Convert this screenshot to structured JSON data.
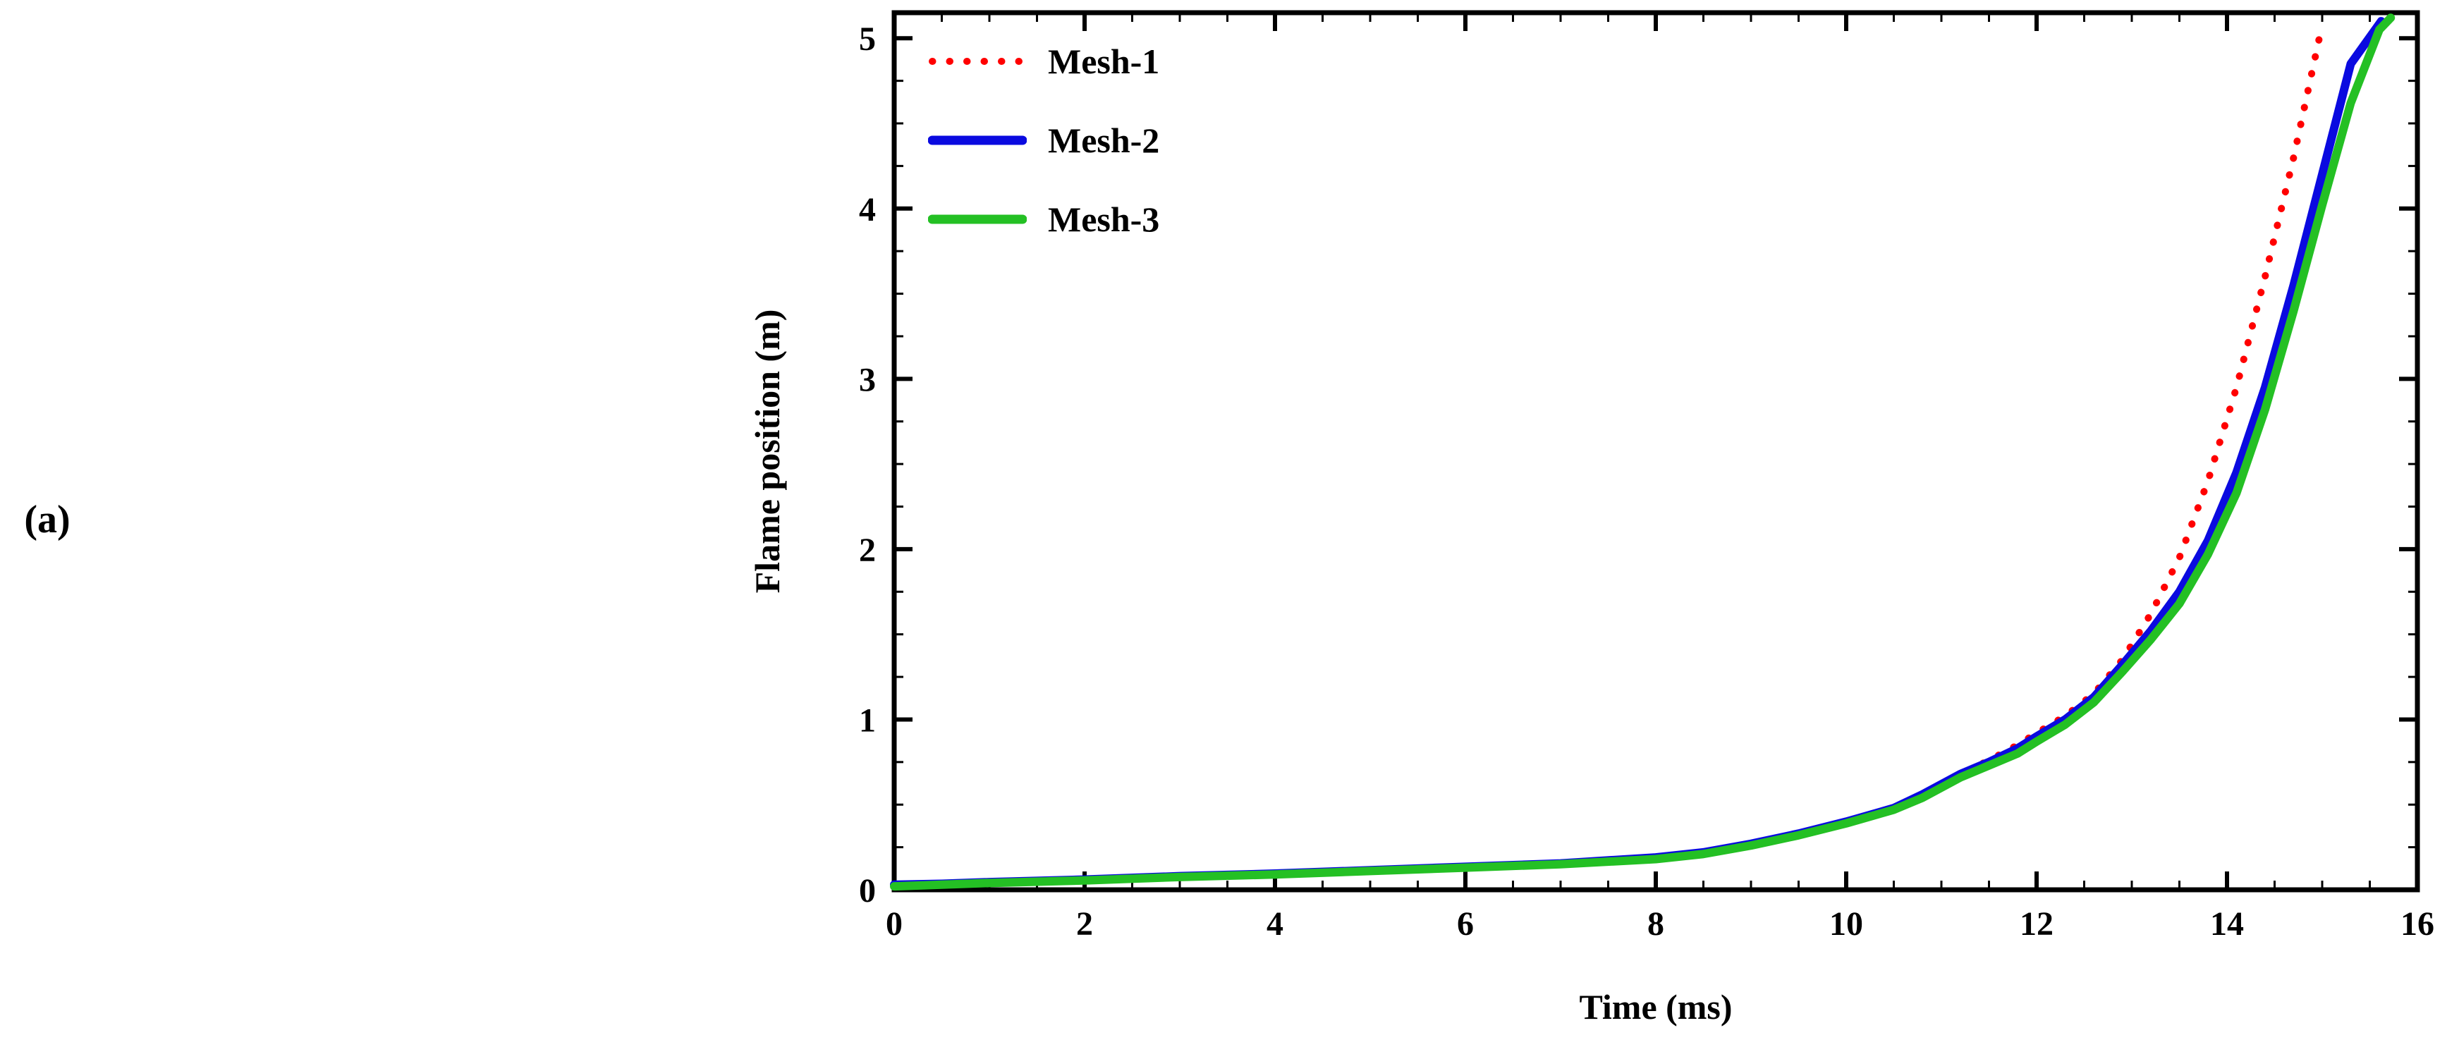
{
  "panel_label": "(a)",
  "chart_data": {
    "type": "line",
    "title": "",
    "xlabel": "Time (ms)",
    "ylabel": "Flame position (m)",
    "xlim": [
      0,
      16
    ],
    "ylim": [
      0,
      5.15
    ],
    "x_ticks": [
      0,
      2,
      4,
      6,
      8,
      10,
      12,
      14,
      16
    ],
    "y_ticks": [
      0,
      1,
      2,
      3,
      4,
      5
    ],
    "x_minor_step": 0.5,
    "y_minor_step": 0.25,
    "grid": false,
    "legend_position": "top-left",
    "axis_color": "#000000",
    "series": [
      {
        "name": "Mesh-1",
        "color": "#ff0000",
        "style": "dotted",
        "x": [
          0,
          0.5,
          1,
          2,
          3,
          4,
          5,
          6,
          7,
          8,
          8.5,
          9,
          9.5,
          10,
          10.5,
          10.8,
          11.2,
          11.5,
          11.8,
          12,
          12.3,
          12.6,
          12.9,
          13.2,
          13.5,
          13.8,
          14.1,
          14.4,
          14.7,
          15.0
        ],
        "y": [
          0.02,
          0.03,
          0.04,
          0.055,
          0.075,
          0.09,
          0.11,
          0.13,
          0.15,
          0.19,
          0.22,
          0.27,
          0.33,
          0.4,
          0.48,
          0.55,
          0.68,
          0.76,
          0.85,
          0.92,
          1.02,
          1.15,
          1.35,
          1.62,
          1.95,
          2.4,
          2.95,
          3.6,
          4.3,
          5.08
        ]
      },
      {
        "name": "Mesh-2",
        "color": "#0a0ae0",
        "style": "solid",
        "x": [
          0,
          0.5,
          1,
          2,
          3,
          4,
          5,
          6,
          7,
          8,
          8.5,
          9,
          9.5,
          10,
          10.5,
          10.8,
          11.2,
          11.5,
          11.8,
          12,
          12.3,
          12.6,
          12.9,
          13.2,
          13.5,
          13.8,
          14.1,
          14.4,
          14.7,
          15.0,
          15.3,
          15.62
        ],
        "y": [
          0.03,
          0.035,
          0.045,
          0.06,
          0.08,
          0.095,
          0.115,
          0.135,
          0.155,
          0.19,
          0.22,
          0.27,
          0.33,
          0.4,
          0.48,
          0.56,
          0.68,
          0.75,
          0.83,
          0.9,
          1.0,
          1.13,
          1.32,
          1.52,
          1.75,
          2.05,
          2.45,
          2.95,
          3.55,
          4.2,
          4.85,
          5.1
        ]
      },
      {
        "name": "Mesh-3",
        "color": "#24c024",
        "style": "solid",
        "x": [
          0,
          0.5,
          1,
          2,
          3,
          4,
          5,
          6,
          7,
          8,
          8.5,
          9,
          9.5,
          10,
          10.5,
          10.8,
          11.2,
          11.5,
          11.8,
          12,
          12.3,
          12.6,
          12.9,
          13.2,
          13.5,
          13.8,
          14.1,
          14.4,
          14.7,
          15.0,
          15.3,
          15.6,
          15.72
        ],
        "y": [
          0.02,
          0.03,
          0.04,
          0.055,
          0.075,
          0.09,
          0.11,
          0.13,
          0.15,
          0.18,
          0.21,
          0.26,
          0.32,
          0.39,
          0.47,
          0.54,
          0.66,
          0.73,
          0.8,
          0.87,
          0.97,
          1.1,
          1.28,
          1.47,
          1.68,
          1.97,
          2.33,
          2.82,
          3.4,
          4.02,
          4.62,
          5.05,
          5.12
        ]
      }
    ]
  }
}
